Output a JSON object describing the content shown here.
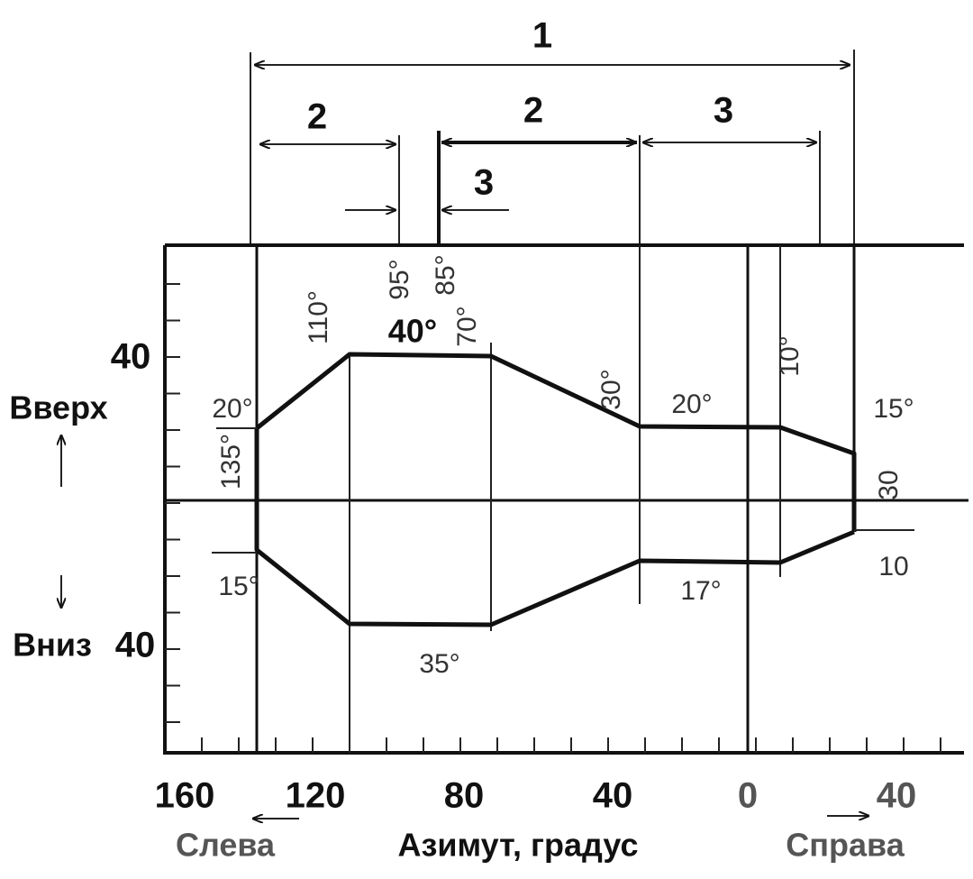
{
  "dimensions": [
    "1",
    "2",
    "2",
    "3",
    "3"
  ],
  "angles": [
    "95°",
    "85°",
    "70°",
    "40°",
    "110°",
    "20°",
    "135°",
    "15°",
    "35°",
    "30°",
    "20°",
    "10°",
    "15°",
    "30",
    "17°",
    "10"
  ],
  "y_axis": {
    "ticks": [
      "40",
      "40"
    ],
    "up_label": "Вверх",
    "down_label": "Вниз"
  },
  "x_axis": {
    "ticks": [
      "160",
      "120",
      "80",
      "40",
      "0",
      "40"
    ],
    "title": "Азимут, градус",
    "left_label": "Слева",
    "right_label": "Справа"
  }
}
